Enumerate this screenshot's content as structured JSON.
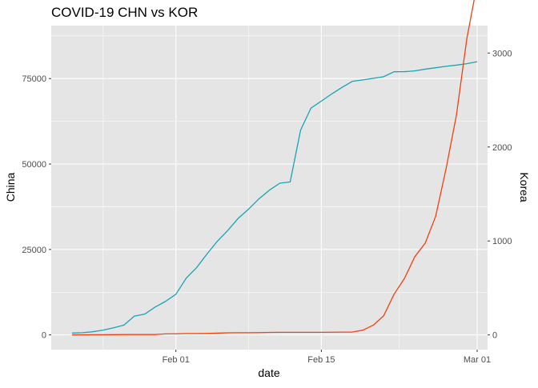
{
  "chart_data": {
    "type": "line",
    "title": "COVID-19 CHN vs KOR",
    "xlabel": "date",
    "ylabel_left": "China",
    "ylabel_right": "Korea",
    "x_ticks": [
      "Feb 01",
      "Feb 15",
      "Mar 01"
    ],
    "x_tick_dates": [
      "2020-02-01",
      "2020-02-15",
      "2020-03-01"
    ],
    "xlim": [
      "2020-01-20",
      "2020-03-02"
    ],
    "y_left_ticks": [
      "0",
      "25000",
      "50000",
      "75000"
    ],
    "y_left_tick_values": [
      0,
      25000,
      50000,
      75000
    ],
    "y_left_lim": [
      -4300,
      90500
    ],
    "y_right_ticks": [
      "0",
      "1000",
      "2000",
      "3000"
    ],
    "y_right_tick_values": [
      0,
      1000,
      2000,
      3000
    ],
    "y_right_lim": [
      -156,
      3292
    ],
    "grid": true,
    "legend": "none",
    "colors": {
      "china": "#17a4b4",
      "korea": "#f2400f",
      "panel": "#e5e5e5",
      "grid": "#ffffff"
    },
    "x": [
      "2020-01-22",
      "2020-01-23",
      "2020-01-24",
      "2020-01-25",
      "2020-01-26",
      "2020-01-27",
      "2020-01-28",
      "2020-01-29",
      "2020-01-30",
      "2020-01-31",
      "2020-02-01",
      "2020-02-02",
      "2020-02-03",
      "2020-02-04",
      "2020-02-05",
      "2020-02-06",
      "2020-02-07",
      "2020-02-08",
      "2020-02-09",
      "2020-02-10",
      "2020-02-11",
      "2020-02-12",
      "2020-02-13",
      "2020-02-14",
      "2020-02-15",
      "2020-02-16",
      "2020-02-17",
      "2020-02-18",
      "2020-02-19",
      "2020-02-20",
      "2020-02-21",
      "2020-02-22",
      "2020-02-23",
      "2020-02-24",
      "2020-02-25",
      "2020-02-26",
      "2020-02-27",
      "2020-02-28",
      "2020-02-29",
      "2020-03-01"
    ],
    "series": [
      {
        "name": "China",
        "axis": "left",
        "values": [
          548,
          643,
          920,
          1406,
          2075,
          2877,
          5509,
          6087,
          8141,
          9802,
          11891,
          16630,
          19716,
          23707,
          27440,
          30587,
          34110,
          36814,
          39829,
          42354,
          44386,
          44759,
          59895,
          66358,
          68413,
          70513,
          72434,
          74211,
          74619,
          75077,
          75550,
          77001,
          77022,
          77241,
          77754,
          78166,
          78600,
          78928,
          79356,
          79932
        ]
      },
      {
        "name": "Korea",
        "axis": "right",
        "values": [
          1,
          1,
          2,
          2,
          3,
          4,
          4,
          4,
          4,
          11,
          12,
          15,
          15,
          16,
          19,
          23,
          24,
          24,
          25,
          27,
          28,
          28,
          28,
          28,
          28,
          29,
          30,
          31,
          51,
          104,
          204,
          433,
          602,
          833,
          977,
          1261,
          1766,
          2337,
          3150,
          3736
        ]
      }
    ]
  }
}
